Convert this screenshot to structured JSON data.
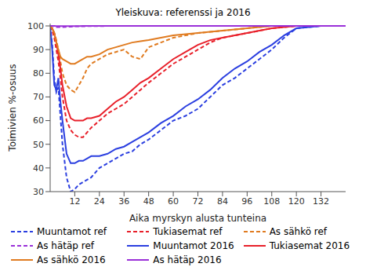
{
  "chart_data": {
    "type": "line",
    "title": "Yleiskuva: referenssi ja 2016",
    "x_label": "Aika myrskyn alusta tunteina",
    "y_label": "Toimivien %-osuus",
    "x": [
      0,
      1,
      2,
      3,
      4,
      5,
      6,
      8,
      10,
      12,
      14,
      16,
      18,
      20,
      24,
      28,
      32,
      36,
      40,
      44,
      48,
      54,
      60,
      66,
      72,
      78,
      84,
      90,
      96,
      102,
      108,
      114,
      120,
      126,
      132,
      144
    ],
    "xlim": [
      0,
      144
    ],
    "xticks": [
      12,
      24,
      36,
      48,
      60,
      72,
      84,
      96,
      108,
      120,
      132
    ],
    "ylim": [
      30,
      101
    ],
    "yticks": [
      30,
      40,
      50,
      60,
      70,
      80,
      90,
      100
    ],
    "grid": false,
    "legend": "bottom",
    "series": [
      {
        "name": "Muuntamot ref",
        "color": "#2b3fe0",
        "line_style": "dashed",
        "values": [
          100,
          92,
          78,
          72,
          74,
          62,
          50,
          36,
          30,
          31,
          33,
          34,
          35,
          36,
          40,
          42,
          44,
          46,
          47,
          50,
          52,
          56,
          60,
          62,
          65,
          70,
          75,
          78,
          82,
          86,
          90,
          95,
          99,
          99.5,
          100,
          100
        ]
      },
      {
        "name": "Tukiasemat ref",
        "color": "#e8202a",
        "line_style": "dashed",
        "values": [
          100,
          98,
          95,
          90,
          85,
          78,
          70,
          60,
          56,
          54,
          53,
          53,
          55,
          57,
          60,
          63,
          65,
          67,
          70,
          73,
          76,
          80,
          84,
          87,
          90,
          93,
          95,
          96,
          97,
          98,
          99,
          99.5,
          100,
          100,
          100,
          100
        ]
      },
      {
        "name": "As sähkö ref",
        "color": "#e07b20",
        "line_style": "dashed",
        "values": [
          100,
          99,
          97,
          94,
          90,
          85,
          80,
          75,
          73,
          72,
          75,
          78,
          82,
          84,
          86,
          88,
          89,
          90,
          87,
          86,
          91,
          93,
          95,
          96,
          97,
          97.5,
          98,
          98.5,
          99,
          99.5,
          100,
          100,
          100,
          100,
          100,
          100
        ]
      },
      {
        "name": "As hätäp ref",
        "color": "#9a30d8",
        "line_style": "dashed",
        "values": [
          100,
          100,
          99.8,
          99.5,
          99.5,
          99.5,
          99.5,
          99.6,
          99.7,
          99.8,
          99.8,
          99.8,
          99.9,
          99.9,
          99.9,
          100,
          100,
          100,
          100,
          100,
          100,
          100,
          100,
          100,
          100,
          100,
          100,
          100,
          100,
          100,
          100,
          100,
          100,
          100,
          100,
          100
        ]
      },
      {
        "name": "Muuntamot 2016",
        "color": "#2b3fe0",
        "line_style": "solid",
        "values": [
          100,
          90,
          75,
          73,
          78,
          68,
          60,
          46,
          42,
          42,
          43,
          43,
          44,
          45,
          45,
          46,
          48,
          49,
          51,
          53,
          55,
          59,
          62,
          66,
          69,
          73,
          78,
          82,
          85,
          89,
          92,
          96,
          99,
          99.5,
          100,
          100
        ]
      },
      {
        "name": "Tukiasemat 2016",
        "color": "#e8202a",
        "line_style": "solid",
        "values": [
          100,
          99,
          97,
          93,
          88,
          82,
          75,
          66,
          61,
          60,
          60,
          60,
          61,
          61,
          62,
          65,
          68,
          70,
          73,
          76,
          78,
          82,
          86,
          89,
          92,
          94,
          95,
          96,
          97,
          98,
          99,
          99.5,
          100,
          100,
          100,
          100
        ]
      },
      {
        "name": "As sähkö 2016",
        "color": "#e07b20",
        "line_style": "solid",
        "values": [
          100,
          99,
          97,
          93,
          90,
          87,
          86,
          85,
          84,
          84,
          85,
          86,
          87,
          87,
          88,
          90,
          91,
          92,
          93,
          93.5,
          94,
          95,
          96,
          96.5,
          97,
          97.5,
          98,
          98.5,
          99,
          99.5,
          100,
          100,
          100,
          100,
          100,
          100
        ]
      },
      {
        "name": "As hätäp 2016",
        "color": "#9a30d8",
        "line_style": "solid",
        "values": [
          100,
          100,
          100,
          99.9,
          99.9,
          99.9,
          99.9,
          99.9,
          99.9,
          99.9,
          99.9,
          100,
          100,
          100,
          100,
          100,
          100,
          100,
          100,
          100,
          100,
          100,
          100,
          100,
          100,
          100,
          100,
          100,
          100,
          100,
          100,
          100,
          100,
          100,
          100,
          100
        ]
      }
    ]
  }
}
